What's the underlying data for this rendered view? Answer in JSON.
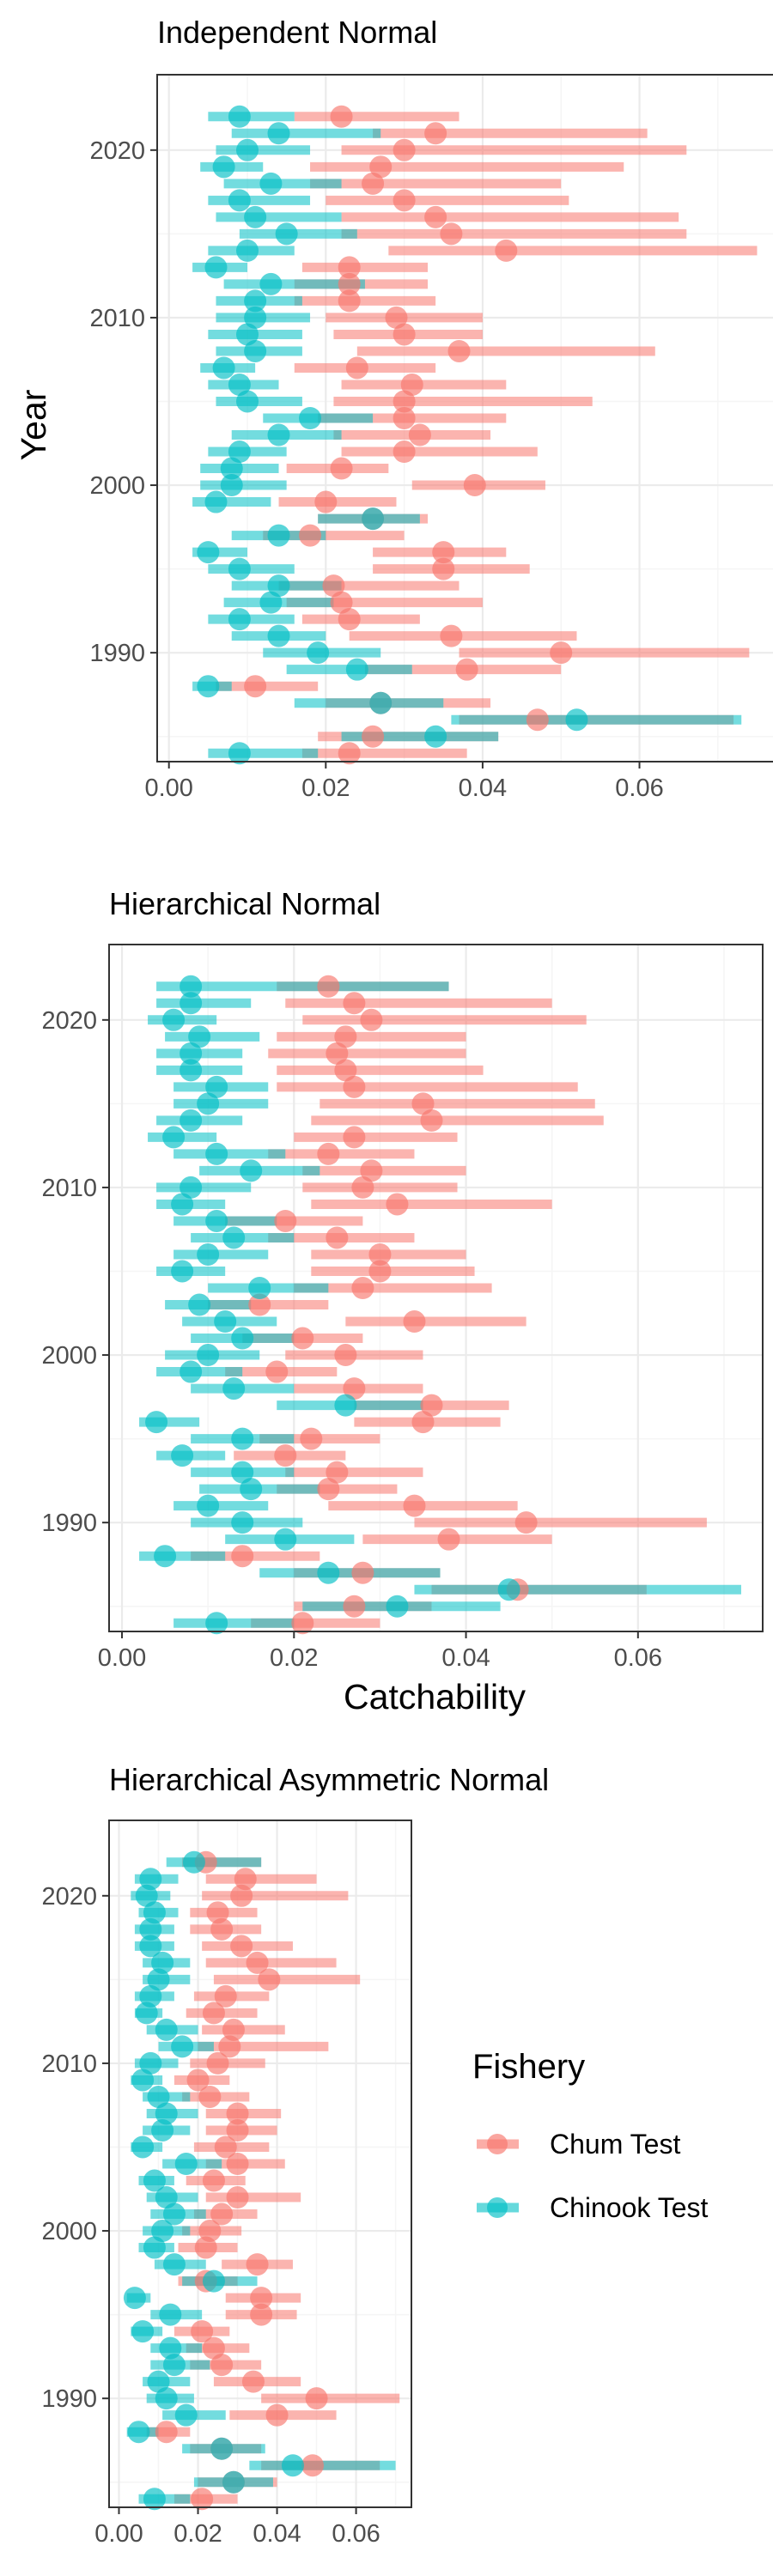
{
  "colors": {
    "chum": "#f8766d",
    "chinook": "#00bfc4",
    "grid_major": "#ebebeb",
    "grid_minor": "#f5f5f5",
    "frame": "#333333"
  },
  "labels": {
    "ylabel": "Year",
    "xlabel": "Catchability",
    "legend_title": "Fishery",
    "legend_chum": "Chum Test",
    "legend_chinook": "Chinook Test",
    "tick_labels_x": [
      "0.00",
      "0.02",
      "0.04",
      "0.06"
    ],
    "tick_labels_y": [
      "1990",
      "2000",
      "2010",
      "2020"
    ]
  },
  "chart_data": [
    {
      "type": "scatter",
      "title": "Independent Normal",
      "xlabel": "",
      "ylabel": "Year",
      "xlim": [
        -0.0015,
        0.079
      ],
      "ylim": [
        1983.5,
        2024.5
      ],
      "x_ticks": [
        0.0,
        0.02,
        0.04,
        0.06
      ],
      "y_ticks": [
        1990,
        2000,
        2010,
        2020
      ],
      "grid": true,
      "years": [
        1984,
        1985,
        1986,
        1987,
        1988,
        1989,
        1990,
        1991,
        1992,
        1993,
        1994,
        1995,
        1996,
        1997,
        1998,
        1999,
        2000,
        2001,
        2002,
        2003,
        2004,
        2005,
        2006,
        2007,
        2008,
        2009,
        2010,
        2011,
        2012,
        2013,
        2014,
        2015,
        2016,
        2017,
        2018,
        2019,
        2020,
        2021,
        2022
      ],
      "series": [
        {
          "name": "Chum Test",
          "estimate": [
            0.023,
            0.026,
            0.047,
            0.027,
            0.011,
            0.038,
            0.05,
            0.036,
            0.023,
            0.022,
            0.021,
            0.035,
            0.035,
            0.018,
            0.026,
            0.02,
            0.039,
            0.022,
            0.03,
            0.032,
            0.03,
            0.03,
            0.031,
            0.024,
            0.037,
            0.03,
            0.029,
            0.023,
            0.023,
            0.023,
            0.043,
            0.036,
            0.034,
            0.03,
            0.026,
            0.027,
            0.03,
            0.034,
            0.022
          ],
          "lower": [
            0.017,
            0.019,
            0.037,
            0.02,
            0.006,
            0.025,
            0.037,
            0.023,
            0.017,
            0.015,
            0.014,
            0.026,
            0.026,
            0.012,
            0.019,
            0.014,
            0.031,
            0.015,
            0.022,
            0.021,
            0.019,
            0.021,
            0.022,
            0.016,
            0.024,
            0.021,
            0.02,
            0.016,
            0.016,
            0.017,
            0.028,
            0.022,
            0.022,
            0.02,
            0.018,
            0.018,
            0.022,
            0.026,
            0.016
          ],
          "upper": [
            0.038,
            0.042,
            0.072,
            0.041,
            0.019,
            0.05,
            0.074,
            0.052,
            0.032,
            0.04,
            0.037,
            0.046,
            0.043,
            0.03,
            0.033,
            0.029,
            0.048,
            0.028,
            0.047,
            0.041,
            0.043,
            0.054,
            0.043,
            0.034,
            0.062,
            0.04,
            0.04,
            0.034,
            0.033,
            0.033,
            0.075,
            0.066,
            0.065,
            0.051,
            0.05,
            0.058,
            0.066,
            0.061,
            0.037
          ]
        },
        {
          "name": "Chinook Test",
          "estimate": [
            0.009,
            0.034,
            0.052,
            0.027,
            0.005,
            0.024,
            0.019,
            0.014,
            0.009,
            0.013,
            0.014,
            0.009,
            0.005,
            0.014,
            0.026,
            0.006,
            0.008,
            0.008,
            0.009,
            0.014,
            0.018,
            0.01,
            0.009,
            0.007,
            0.011,
            0.01,
            0.011,
            0.011,
            0.013,
            0.006,
            0.01,
            0.015,
            0.011,
            0.009,
            0.013,
            0.007,
            0.01,
            0.014,
            0.009
          ],
          "lower": [
            0.005,
            0.022,
            0.036,
            0.016,
            0.003,
            0.015,
            0.012,
            0.008,
            0.005,
            0.007,
            0.008,
            0.005,
            0.003,
            0.008,
            0.019,
            0.003,
            0.004,
            0.004,
            0.005,
            0.008,
            0.012,
            0.006,
            0.005,
            0.004,
            0.006,
            0.005,
            0.006,
            0.006,
            0.007,
            0.003,
            0.005,
            0.009,
            0.006,
            0.005,
            0.007,
            0.004,
            0.006,
            0.008,
            0.005
          ],
          "upper": [
            0.019,
            0.042,
            0.073,
            0.035,
            0.008,
            0.031,
            0.027,
            0.02,
            0.016,
            0.021,
            0.022,
            0.016,
            0.01,
            0.02,
            0.032,
            0.013,
            0.015,
            0.014,
            0.015,
            0.022,
            0.026,
            0.017,
            0.014,
            0.011,
            0.017,
            0.017,
            0.018,
            0.017,
            0.025,
            0.01,
            0.016,
            0.024,
            0.022,
            0.018,
            0.022,
            0.012,
            0.018,
            0.027,
            0.016
          ]
        }
      ]
    },
    {
      "type": "scatter",
      "title": "Hierarchical Normal",
      "xlabel": "Catchability",
      "ylabel": "",
      "xlim": [
        -0.0015,
        0.0745
      ],
      "ylim": [
        1983.5,
        2024.5
      ],
      "x_ticks": [
        0.0,
        0.02,
        0.04,
        0.06
      ],
      "y_ticks": [
        1990,
        2000,
        2010,
        2020
      ],
      "grid": true,
      "years": [
        1984,
        1985,
        1986,
        1987,
        1988,
        1989,
        1990,
        1991,
        1992,
        1993,
        1994,
        1995,
        1996,
        1997,
        1998,
        1999,
        2000,
        2001,
        2002,
        2003,
        2004,
        2005,
        2006,
        2007,
        2008,
        2009,
        2010,
        2011,
        2012,
        2013,
        2014,
        2015,
        2016,
        2017,
        2018,
        2019,
        2020,
        2021,
        2022
      ],
      "series": [
        {
          "name": "Chum Test",
          "estimate": [
            0.021,
            0.027,
            0.046,
            0.028,
            0.014,
            0.038,
            0.047,
            0.034,
            0.024,
            0.025,
            0.019,
            0.022,
            0.035,
            0.036,
            0.027,
            0.018,
            0.026,
            0.021,
            0.034,
            0.016,
            0.028,
            0.03,
            0.03,
            0.025,
            0.019,
            0.032,
            0.028,
            0.029,
            0.024,
            0.027,
            0.036,
            0.035,
            0.027,
            0.026,
            0.025,
            0.026,
            0.029,
            0.027,
            0.024
          ],
          "lower": [
            0.015,
            0.02,
            0.036,
            0.02,
            0.008,
            0.028,
            0.034,
            0.024,
            0.018,
            0.019,
            0.013,
            0.016,
            0.027,
            0.027,
            0.02,
            0.012,
            0.019,
            0.014,
            0.026,
            0.01,
            0.02,
            0.022,
            0.022,
            0.017,
            0.012,
            0.022,
            0.021,
            0.021,
            0.017,
            0.02,
            0.022,
            0.023,
            0.018,
            0.018,
            0.017,
            0.018,
            0.021,
            0.019,
            0.018
          ],
          "upper": [
            0.03,
            0.036,
            0.061,
            0.037,
            0.023,
            0.05,
            0.068,
            0.046,
            0.032,
            0.035,
            0.026,
            0.03,
            0.044,
            0.045,
            0.035,
            0.025,
            0.035,
            0.028,
            0.047,
            0.024,
            0.043,
            0.041,
            0.04,
            0.034,
            0.028,
            0.05,
            0.039,
            0.04,
            0.034,
            0.039,
            0.056,
            0.055,
            0.053,
            0.042,
            0.04,
            0.04,
            0.054,
            0.05,
            0.038
          ]
        },
        {
          "name": "Chinook Test",
          "estimate": [
            0.011,
            0.032,
            0.045,
            0.024,
            0.005,
            0.019,
            0.014,
            0.01,
            0.015,
            0.014,
            0.007,
            0.014,
            0.004,
            0.026,
            0.013,
            0.008,
            0.01,
            0.014,
            0.012,
            0.009,
            0.016,
            0.007,
            0.01,
            0.013,
            0.011,
            0.007,
            0.008,
            0.015,
            0.011,
            0.006,
            0.008,
            0.01,
            0.011,
            0.008,
            0.008,
            0.009,
            0.006,
            0.008,
            0.008
          ],
          "lower": [
            0.006,
            0.021,
            0.034,
            0.016,
            0.002,
            0.012,
            0.008,
            0.006,
            0.009,
            0.008,
            0.004,
            0.008,
            0.002,
            0.018,
            0.008,
            0.004,
            0.005,
            0.008,
            0.007,
            0.005,
            0.01,
            0.004,
            0.006,
            0.008,
            0.006,
            0.004,
            0.004,
            0.009,
            0.006,
            0.003,
            0.004,
            0.006,
            0.006,
            0.004,
            0.004,
            0.005,
            0.003,
            0.004,
            0.004
          ],
          "upper": [
            0.02,
            0.044,
            0.072,
            0.037,
            0.012,
            0.027,
            0.021,
            0.017,
            0.023,
            0.02,
            0.012,
            0.02,
            0.009,
            0.035,
            0.02,
            0.014,
            0.016,
            0.02,
            0.018,
            0.015,
            0.024,
            0.012,
            0.017,
            0.02,
            0.018,
            0.012,
            0.015,
            0.023,
            0.019,
            0.011,
            0.014,
            0.017,
            0.017,
            0.014,
            0.014,
            0.016,
            0.011,
            0.015,
            0.038
          ]
        }
      ]
    },
    {
      "type": "scatter",
      "title": "Hierarchical Asymmetric Normal",
      "xlabel": "",
      "ylabel": "",
      "xlim": [
        -0.0025,
        0.074
      ],
      "ylim": [
        1983.5,
        2024.5
      ],
      "x_ticks": [
        0.0,
        0.02,
        0.04,
        0.06
      ],
      "y_ticks": [
        1990,
        2000,
        2010,
        2020
      ],
      "grid": true,
      "years": [
        1984,
        1985,
        1986,
        1987,
        1988,
        1989,
        1990,
        1991,
        1992,
        1993,
        1994,
        1995,
        1996,
        1997,
        1998,
        1999,
        2000,
        2001,
        2002,
        2003,
        2004,
        2005,
        2006,
        2007,
        2008,
        2009,
        2010,
        2011,
        2012,
        2013,
        2014,
        2015,
        2016,
        2017,
        2018,
        2019,
        2020,
        2021,
        2022
      ],
      "series": [
        {
          "name": "Chum Test",
          "estimate": [
            0.021,
            0.029,
            0.049,
            0.026,
            0.012,
            0.04,
            0.05,
            0.034,
            0.026,
            0.024,
            0.021,
            0.036,
            0.036,
            0.022,
            0.035,
            0.022,
            0.023,
            0.026,
            0.03,
            0.024,
            0.03,
            0.027,
            0.03,
            0.03,
            0.023,
            0.02,
            0.025,
            0.028,
            0.029,
            0.024,
            0.027,
            0.038,
            0.035,
            0.031,
            0.026,
            0.025,
            0.031,
            0.032,
            0.022
          ],
          "lower": [
            0.014,
            0.02,
            0.036,
            0.018,
            0.007,
            0.028,
            0.036,
            0.024,
            0.018,
            0.017,
            0.014,
            0.027,
            0.027,
            0.015,
            0.026,
            0.015,
            0.016,
            0.019,
            0.022,
            0.017,
            0.022,
            0.019,
            0.022,
            0.022,
            0.016,
            0.014,
            0.018,
            0.02,
            0.021,
            0.017,
            0.019,
            0.024,
            0.022,
            0.021,
            0.018,
            0.018,
            0.021,
            0.022,
            0.016
          ],
          "upper": [
            0.03,
            0.04,
            0.066,
            0.036,
            0.018,
            0.055,
            0.071,
            0.046,
            0.036,
            0.033,
            0.028,
            0.045,
            0.046,
            0.03,
            0.044,
            0.03,
            0.031,
            0.035,
            0.046,
            0.032,
            0.042,
            0.038,
            0.04,
            0.041,
            0.033,
            0.028,
            0.037,
            0.053,
            0.042,
            0.035,
            0.038,
            0.061,
            0.055,
            0.044,
            0.036,
            0.035,
            0.058,
            0.05,
            0.036
          ]
        },
        {
          "name": "Chinook Test",
          "estimate": [
            0.009,
            0.029,
            0.044,
            0.026,
            0.005,
            0.017,
            0.012,
            0.01,
            0.014,
            0.013,
            0.006,
            0.013,
            0.004,
            0.024,
            0.014,
            0.009,
            0.011,
            0.014,
            0.012,
            0.009,
            0.017,
            0.006,
            0.011,
            0.012,
            0.01,
            0.006,
            0.008,
            0.016,
            0.012,
            0.007,
            0.008,
            0.01,
            0.011,
            0.008,
            0.008,
            0.009,
            0.007,
            0.008,
            0.019
          ],
          "lower": [
            0.005,
            0.019,
            0.033,
            0.016,
            0.002,
            0.011,
            0.007,
            0.006,
            0.008,
            0.008,
            0.003,
            0.008,
            0.002,
            0.016,
            0.009,
            0.005,
            0.006,
            0.008,
            0.007,
            0.005,
            0.011,
            0.003,
            0.006,
            0.007,
            0.006,
            0.003,
            0.004,
            0.01,
            0.007,
            0.004,
            0.004,
            0.006,
            0.006,
            0.004,
            0.004,
            0.005,
            0.003,
            0.004,
            0.012
          ],
          "upper": [
            0.018,
            0.039,
            0.07,
            0.037,
            0.01,
            0.027,
            0.019,
            0.018,
            0.023,
            0.021,
            0.011,
            0.021,
            0.008,
            0.035,
            0.022,
            0.014,
            0.018,
            0.022,
            0.02,
            0.014,
            0.026,
            0.011,
            0.018,
            0.02,
            0.018,
            0.011,
            0.015,
            0.024,
            0.02,
            0.011,
            0.014,
            0.018,
            0.018,
            0.014,
            0.014,
            0.015,
            0.013,
            0.015,
            0.036
          ]
        }
      ]
    }
  ]
}
